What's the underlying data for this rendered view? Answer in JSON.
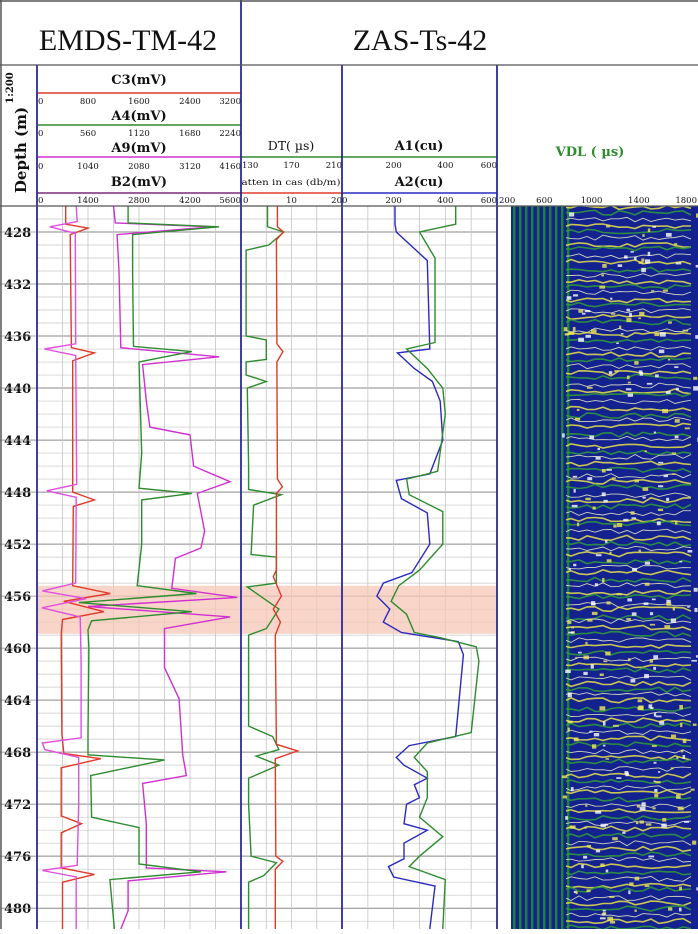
{
  "headers": {
    "left_title": "EMDS-TM-42",
    "right_title": "ZAS-Ts-42"
  },
  "depth_label": "Depth (m)",
  "scale_label": "1:200",
  "chart_data": {
    "type": "line",
    "depth_ticks": [
      428,
      432,
      436,
      440,
      444,
      448,
      452,
      456,
      460,
      464,
      468,
      472,
      476,
      480
    ],
    "depth_range": [
      426.0,
      481.6
    ],
    "highlight_zone": {
      "top": 455.2,
      "bottom": 458.9,
      "color": "#f6c7b5"
    },
    "track1_curves": [
      {
        "name": "C3(mV)",
        "color": "#e03a2a",
        "ticks": [
          "0",
          "800",
          "1600",
          "2400",
          "3200"
        ],
        "range": [
          0,
          3200
        ]
      },
      {
        "name": "A4(mV)",
        "color": "#2e8b2e",
        "ticks": [
          "0",
          "560",
          "1120",
          "1680",
          "2240"
        ],
        "range": [
          0,
          2240
        ]
      },
      {
        "name": "A9(mV)",
        "color": "#d030d0",
        "ticks": [
          "0",
          "1040",
          "2080",
          "3120",
          "4160"
        ],
        "range": [
          0,
          4160
        ]
      },
      {
        "name": "B2(mV)",
        "color": "#7a2a7a",
        "ticks": [
          "0",
          "1400",
          "2800",
          "4200",
          "5600"
        ],
        "range": [
          0,
          5600
        ]
      }
    ],
    "track2_curves": [
      {
        "name": "DT( µs)",
        "color": "#2e8b2e",
        "ticks": [
          "130",
          "170",
          "210"
        ],
        "range": [
          130,
          210
        ]
      },
      {
        "name": "atten in cas (db/m)",
        "color": "#e03a2a",
        "ticks": [
          "0",
          "10",
          "20"
        ],
        "range": [
          0,
          20
        ]
      }
    ],
    "track3_curves": [
      {
        "name": "A1(cu)",
        "color": "#2e8b2e",
        "ticks": [
          "0",
          "200",
          "400",
          "600"
        ],
        "range": [
          0,
          600
        ]
      },
      {
        "name": "A2(cu)",
        "color": "#2a2ac0",
        "ticks": [
          "0",
          "200",
          "400",
          "600"
        ],
        "range": [
          0,
          600
        ]
      }
    ],
    "vdl": {
      "name": "VDL ( µs)",
      "ticks": [
        "200",
        "600",
        "1000",
        "1400",
        "1800"
      ],
      "range": [
        200,
        1900
      ]
    },
    "series": [
      {
        "name": "B2",
        "color": "#d030d0",
        "track": 1,
        "points": [
          [
            426,
            2100
          ],
          [
            427.3,
            2150
          ],
          [
            427.6,
            4800
          ],
          [
            428.2,
            2200
          ],
          [
            431,
            2250
          ],
          [
            436.9,
            2300
          ],
          [
            437.6,
            5000
          ],
          [
            438.2,
            2900
          ],
          [
            441,
            3000
          ],
          [
            443,
            3100
          ],
          [
            443.6,
            4200
          ],
          [
            446,
            4300
          ],
          [
            447.2,
            5300
          ],
          [
            448.1,
            4400
          ],
          [
            451,
            4600
          ],
          [
            452.3,
            4500
          ],
          [
            453.1,
            3800
          ],
          [
            455.4,
            3700
          ],
          [
            456.1,
            5500
          ],
          [
            456.8,
            1400
          ],
          [
            457.6,
            5300
          ],
          [
            458.5,
            3500
          ],
          [
            461.5,
            3500
          ],
          [
            463.9,
            3900
          ],
          [
            468.2,
            4000
          ],
          [
            469.8,
            4100
          ],
          [
            470.4,
            2900
          ],
          [
            473.5,
            3000
          ],
          [
            476.9,
            3000
          ],
          [
            477.2,
            5200
          ],
          [
            477.9,
            2500
          ],
          [
            480.2,
            2500
          ],
          [
            481.6,
            2300
          ]
        ]
      },
      {
        "name": "A4",
        "color": "#2e8b2e",
        "track": 1,
        "points": [
          [
            426,
            1000
          ],
          [
            427.3,
            1000
          ],
          [
            427.6,
            2000
          ],
          [
            428.2,
            1050
          ],
          [
            431,
            1050
          ],
          [
            436.8,
            1060
          ],
          [
            437.2,
            1700
          ],
          [
            438,
            1120
          ],
          [
            445,
            1150
          ],
          [
            447.7,
            1120
          ],
          [
            448.1,
            1700
          ],
          [
            448.6,
            1150
          ],
          [
            452,
            1150
          ],
          [
            455.2,
            1100
          ],
          [
            455.8,
            1750
          ],
          [
            456.5,
            460
          ],
          [
            457.2,
            1700
          ],
          [
            457.9,
            600
          ],
          [
            458.6,
            560
          ],
          [
            460,
            570
          ],
          [
            466.5,
            560
          ],
          [
            468.2,
            560
          ],
          [
            468.6,
            1400
          ],
          [
            469.8,
            590
          ],
          [
            473,
            600
          ],
          [
            473.8,
            1120
          ],
          [
            476.6,
            1120
          ],
          [
            477.2,
            1800
          ],
          [
            477.8,
            800
          ],
          [
            481.6,
            850
          ]
        ]
      },
      {
        "name": "C3",
        "color": "#e03a2a",
        "track": 1,
        "points": [
          [
            426,
            450
          ],
          [
            427.4,
            450
          ],
          [
            427.7,
            800
          ],
          [
            428.2,
            520
          ],
          [
            436.9,
            540
          ],
          [
            437.3,
            900
          ],
          [
            437.9,
            560
          ],
          [
            448,
            560
          ],
          [
            448.6,
            900
          ],
          [
            449.1,
            570
          ],
          [
            455.2,
            560
          ],
          [
            455.8,
            1150
          ],
          [
            456.4,
            420
          ],
          [
            457.2,
            1050
          ],
          [
            457.8,
            400
          ],
          [
            459,
            380
          ],
          [
            466.6,
            390
          ],
          [
            468.1,
            420
          ],
          [
            468.5,
            1000
          ],
          [
            469.2,
            380
          ],
          [
            472.9,
            380
          ],
          [
            473.5,
            700
          ],
          [
            474.2,
            380
          ],
          [
            476.9,
            380
          ],
          [
            477.4,
            900
          ],
          [
            478,
            400
          ],
          [
            481.6,
            400
          ]
        ]
      },
      {
        "name": "A9",
        "color": "#e050e0",
        "track": 1,
        "points": [
          [
            426,
            800
          ],
          [
            427.2,
            820
          ],
          [
            427.6,
            260
          ],
          [
            428.1,
            780
          ],
          [
            436.6,
            790
          ],
          [
            437,
            150
          ],
          [
            437.5,
            790
          ],
          [
            447.4,
            810
          ],
          [
            447.9,
            200
          ],
          [
            448.4,
            800
          ],
          [
            455,
            790
          ],
          [
            455.6,
            110
          ],
          [
            456.2,
            1000
          ],
          [
            456.9,
            100
          ],
          [
            457.6,
            880
          ],
          [
            461,
            900
          ],
          [
            466.9,
            900
          ],
          [
            467.3,
            110
          ],
          [
            467.8,
            160
          ],
          [
            468.4,
            850
          ],
          [
            472,
            850
          ],
          [
            476.7,
            820
          ],
          [
            477.1,
            110
          ],
          [
            477.6,
            800
          ],
          [
            481.6,
            800
          ]
        ]
      },
      {
        "name": "DT",
        "color": "#2e8b2e",
        "track": 2,
        "points": [
          [
            426,
            151
          ],
          [
            427.6,
            151
          ],
          [
            428,
            164
          ],
          [
            429,
            152
          ],
          [
            429.4,
            134
          ],
          [
            436,
            134
          ],
          [
            436.3,
            150
          ],
          [
            437.8,
            150
          ],
          [
            438,
            134
          ],
          [
            439,
            134
          ],
          [
            439.5,
            150
          ],
          [
            440,
            135
          ],
          [
            446,
            136
          ],
          [
            447.8,
            136
          ],
          [
            448.2,
            162
          ],
          [
            449,
            140
          ],
          [
            452.8,
            138
          ],
          [
            453,
            158
          ],
          [
            455,
            158
          ],
          [
            455.3,
            135
          ],
          [
            457,
            160
          ],
          [
            458.5,
            150
          ],
          [
            459,
            136
          ],
          [
            466,
            136
          ],
          [
            466.8,
            155
          ],
          [
            467.8,
            160
          ],
          [
            468.3,
            142
          ],
          [
            469,
            160
          ],
          [
            470,
            136
          ],
          [
            472,
            136
          ],
          [
            476,
            138
          ],
          [
            476.5,
            158
          ],
          [
            477.5,
            148
          ],
          [
            478,
            136
          ],
          [
            481.6,
            136
          ]
        ]
      },
      {
        "name": "Atten",
        "color": "#e03a2a",
        "track": 2,
        "points": [
          [
            426,
            7.2
          ],
          [
            427.6,
            7.2
          ],
          [
            428,
            8.4
          ],
          [
            428.6,
            7
          ],
          [
            436.6,
            7.1
          ],
          [
            437.2,
            8.3
          ],
          [
            438,
            7.1
          ],
          [
            447,
            7.2
          ],
          [
            447.6,
            8.2
          ],
          [
            448.1,
            7
          ],
          [
            454,
            7
          ],
          [
            454.5,
            6.4
          ],
          [
            456,
            8
          ],
          [
            457,
            6.4
          ],
          [
            458,
            7.8
          ],
          [
            459,
            6.8
          ],
          [
            467.4,
            7
          ],
          [
            467.9,
            11.2
          ],
          [
            468.5,
            6.8
          ],
          [
            476,
            6.9
          ],
          [
            476.4,
            8.3
          ],
          [
            477,
            6.8
          ],
          [
            481.6,
            6.8
          ]
        ]
      },
      {
        "name": "A1",
        "color": "#2a2ac0",
        "track": 3,
        "points": [
          [
            426,
            205
          ],
          [
            427.4,
            205
          ],
          [
            428,
            210
          ],
          [
            430.2,
            330
          ],
          [
            437,
            340
          ],
          [
            437.3,
            215
          ],
          [
            438.5,
            280
          ],
          [
            439.5,
            350
          ],
          [
            441,
            380
          ],
          [
            444,
            390
          ],
          [
            446.6,
            340
          ],
          [
            447.1,
            210
          ],
          [
            448.5,
            230
          ],
          [
            449.6,
            330
          ],
          [
            452,
            340
          ],
          [
            454.2,
            270
          ],
          [
            455,
            160
          ],
          [
            456,
            135
          ],
          [
            457,
            185
          ],
          [
            458,
            160
          ],
          [
            458.8,
            230
          ],
          [
            459.5,
            450
          ],
          [
            460.5,
            470
          ],
          [
            466.8,
            440
          ],
          [
            467.5,
            260
          ],
          [
            468.4,
            210
          ],
          [
            469,
            240
          ],
          [
            470,
            330
          ],
          [
            470.5,
            280
          ],
          [
            471.5,
            300
          ],
          [
            472,
            250
          ],
          [
            473.5,
            240
          ],
          [
            474,
            330
          ],
          [
            475,
            240
          ],
          [
            476.2,
            240
          ],
          [
            476.8,
            180
          ],
          [
            477.6,
            200
          ],
          [
            478.3,
            360
          ],
          [
            481.6,
            340
          ]
        ]
      },
      {
        "name": "A2",
        "color": "#2e8b2e",
        "track": 3,
        "points": [
          [
            426,
            440
          ],
          [
            427.4,
            440
          ],
          [
            428,
            300
          ],
          [
            430,
            360
          ],
          [
            436.5,
            360
          ],
          [
            437,
            250
          ],
          [
            438.5,
            330
          ],
          [
            440,
            390
          ],
          [
            442,
            400
          ],
          [
            446.4,
            370
          ],
          [
            447,
            250
          ],
          [
            448.2,
            260
          ],
          [
            449.5,
            390
          ],
          [
            452,
            390
          ],
          [
            454,
            300
          ],
          [
            455.2,
            220
          ],
          [
            456.4,
            190
          ],
          [
            457.4,
            250
          ],
          [
            458.8,
            280
          ],
          [
            459.2,
            380
          ],
          [
            459.9,
            520
          ],
          [
            461,
            530
          ],
          [
            466.5,
            500
          ],
          [
            467.3,
            330
          ],
          [
            468.4,
            280
          ],
          [
            469.5,
            330
          ],
          [
            471.5,
            330
          ],
          [
            473,
            300
          ],
          [
            474.5,
            390
          ],
          [
            476,
            300
          ],
          [
            476.8,
            260
          ],
          [
            477.8,
            400
          ],
          [
            481.6,
            390
          ]
        ]
      }
    ]
  }
}
